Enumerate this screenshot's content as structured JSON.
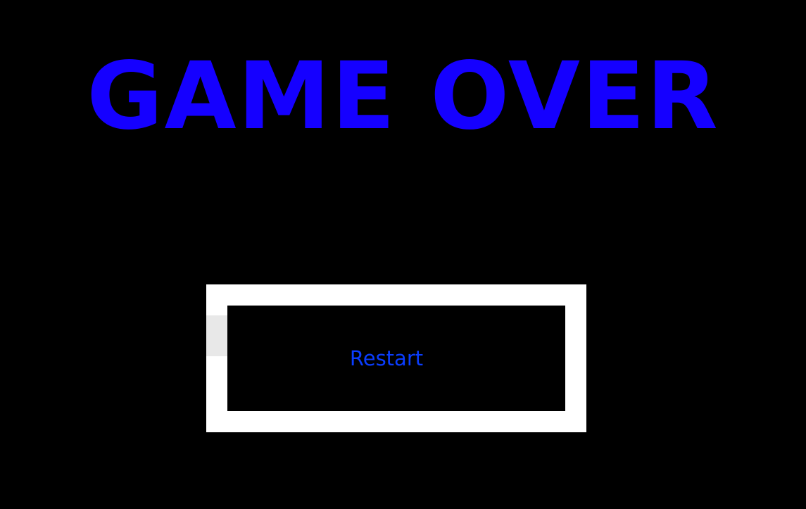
{
  "title": "GAME OVER",
  "button": {
    "label": "Restart"
  },
  "colors": {
    "background": "#000000",
    "title": "#1500ff",
    "button_border": "#ffffff",
    "button_label": "#0a3dff"
  }
}
